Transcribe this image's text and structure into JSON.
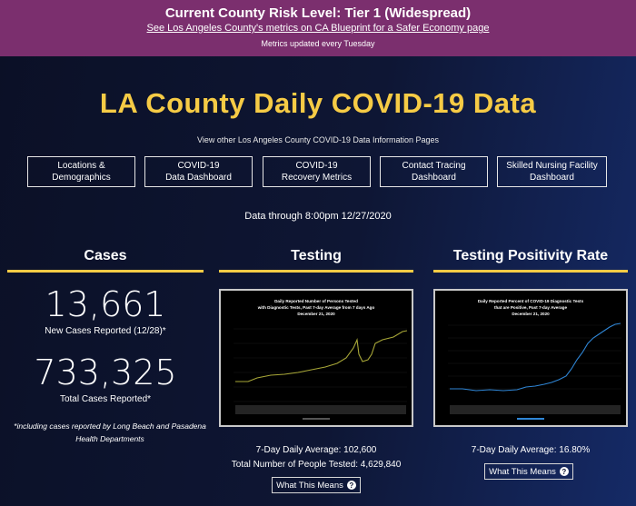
{
  "banner": {
    "risk_level": "Current County Risk Level: Tier 1 (Widespread)",
    "link": "See Los Angeles County's metrics on CA Blueprint for a Safer Economy page",
    "updated": "Metrics updated every Tuesday"
  },
  "header": {
    "title": "LA County Daily COVID-19 Data",
    "subnav": "View other Los Angeles County COVID-19 Data Information Pages"
  },
  "nav": [
    {
      "line1": "Locations &",
      "line2": "Demographics"
    },
    {
      "line1": "COVID-19",
      "line2": "Data Dashboard"
    },
    {
      "line1": "COVID-19",
      "line2": "Recovery Metrics"
    },
    {
      "line1": "Contact Tracing",
      "line2": "Dashboard"
    },
    {
      "line1": "Skilled Nursing Facility",
      "line2": "Dashboard"
    }
  ],
  "data_through": "Data through 8:00pm 12/27/2020",
  "cases": {
    "title": "Cases",
    "new_cases": "13,661",
    "new_cases_label": "New Cases Reported (12/28)*",
    "total_cases": "733,325",
    "total_cases_label": "Total Cases Reported*",
    "footnote": "*including cases reported by Long Beach and Pasadena Health Departments"
  },
  "testing": {
    "title": "Testing",
    "chart_title_1": "Daily Reported Number of Persons Tested",
    "chart_title_2": "with Diagnostic Tests, Past 7-day Average from 7 days Ago",
    "chart_title_3": "December 21, 2020",
    "avg": "7-Day Daily Average: 102,600",
    "total": "Total Number of People Tested: 4,629,840",
    "button": "What This Means"
  },
  "positivity": {
    "title": "Testing Positivity Rate",
    "chart_title_1": "Daily Reported Percent of COVID-19 Diagnostic Tests",
    "chart_title_2": "that are Positive, Past 7-day Average",
    "chart_title_3": "December 21, 2020",
    "avg": "7-Day Daily Average: 16.80%",
    "button": "What This Means"
  },
  "colors": {
    "accent": "#f6cb45",
    "banner": "#7b2f6e",
    "testing_line": "#a9a838",
    "positivity_line": "#2f86d6"
  },
  "icons": {
    "help": "question-circle-icon"
  }
}
